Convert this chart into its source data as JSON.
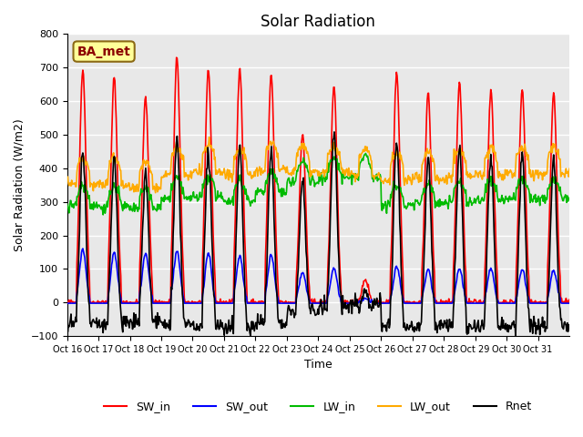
{
  "title": "Solar Radiation",
  "ylabel": "Solar Radiation (W/m2)",
  "xlabel": "Time",
  "ylim": [
    -100,
    800
  ],
  "yticks": [
    -100,
    0,
    100,
    200,
    300,
    400,
    500,
    600,
    700,
    800
  ],
  "xtick_labels": [
    "Oct 16",
    "Oct 17",
    "Oct 18",
    "Oct 19",
    "Oct 20",
    "Oct 21",
    "Oct 22",
    "Oct 23",
    "Oct 24",
    "Oct 25",
    "Oct 26",
    "Oct 27",
    "Oct 28",
    "Oct 29",
    "Oct 30",
    "Oct 31"
  ],
  "background_color": "#e8e8e8",
  "figure_bg": "#ffffff",
  "grid_color": "#ffffff",
  "series": {
    "SW_in": {
      "color": "#ff0000",
      "lw": 1.2
    },
    "SW_out": {
      "color": "#0000ff",
      "lw": 1.2
    },
    "LW_in": {
      "color": "#00bb00",
      "lw": 1.2
    },
    "LW_out": {
      "color": "#ffaa00",
      "lw": 1.2
    },
    "Rnet": {
      "color": "#000000",
      "lw": 1.2
    }
  },
  "annotation_text": "BA_met",
  "annotation_color": "#8b0000",
  "annotation_bg": "#ffff99",
  "annotation_border": "#8b6914",
  "n_points_per_day": 48,
  "n_days": 16,
  "sw_in_peaks": [
    695,
    670,
    610,
    730,
    695,
    700,
    675,
    500,
    645,
    70,
    685,
    625,
    655,
    635,
    635,
    625
  ],
  "sw_out_peaks": [
    160,
    150,
    145,
    155,
    148,
    140,
    142,
    90,
    105,
    12,
    107,
    100,
    102,
    100,
    100,
    97
  ],
  "lw_in_base": [
    290,
    285,
    280,
    310,
    315,
    305,
    330,
    360,
    370,
    375,
    290,
    295,
    300,
    305,
    310,
    310
  ],
  "lw_out_base": [
    350,
    355,
    340,
    380,
    390,
    380,
    395,
    390,
    385,
    380,
    365,
    370,
    375,
    380,
    385,
    385
  ]
}
